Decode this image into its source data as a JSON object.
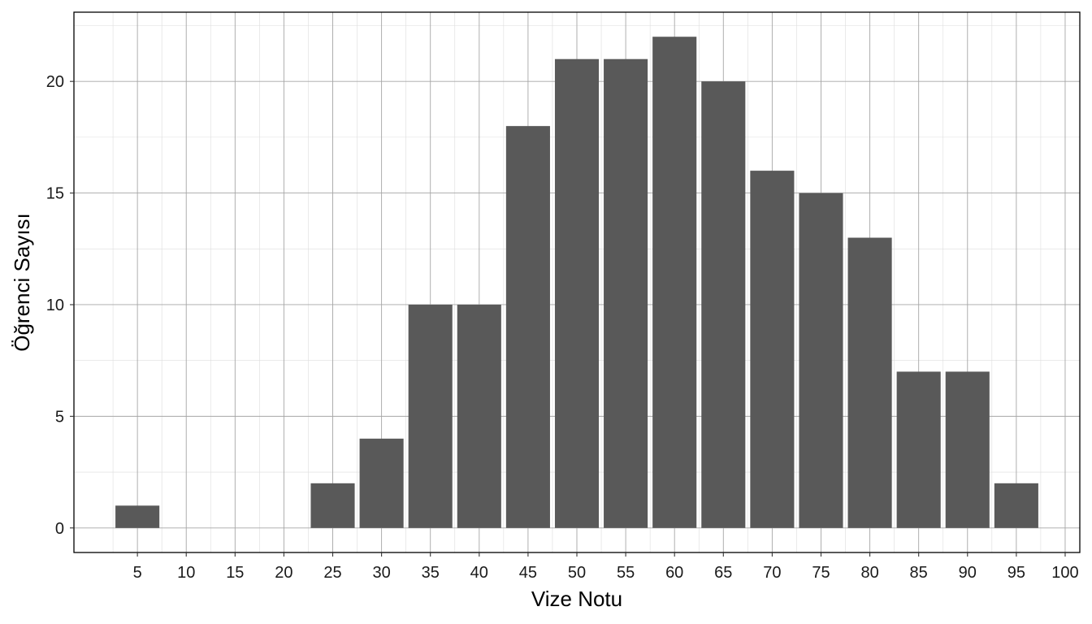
{
  "chart_data": {
    "type": "bar",
    "xlabel": "Vize Notu",
    "ylabel": "Öğrenci Sayısı",
    "categories": [
      "5",
      "10",
      "15",
      "20",
      "25",
      "30",
      "35",
      "40",
      "45",
      "50",
      "55",
      "60",
      "65",
      "70",
      "75",
      "80",
      "85",
      "90",
      "95",
      "100"
    ],
    "x": [
      5,
      10,
      15,
      20,
      25,
      30,
      35,
      40,
      45,
      50,
      55,
      60,
      65,
      70,
      75,
      80,
      85,
      90,
      95,
      100
    ],
    "values": [
      1,
      0,
      0,
      0,
      2,
      4,
      10,
      10,
      18,
      21,
      21,
      22,
      20,
      16,
      15,
      13,
      7,
      7,
      2,
      0
    ],
    "ylim": [
      -1.1,
      23.1
    ],
    "xlim": [
      -1.5,
      101.5
    ],
    "y_ticks": [
      0,
      5,
      10,
      15,
      20
    ],
    "bar_color": "#595959",
    "grid": true
  }
}
